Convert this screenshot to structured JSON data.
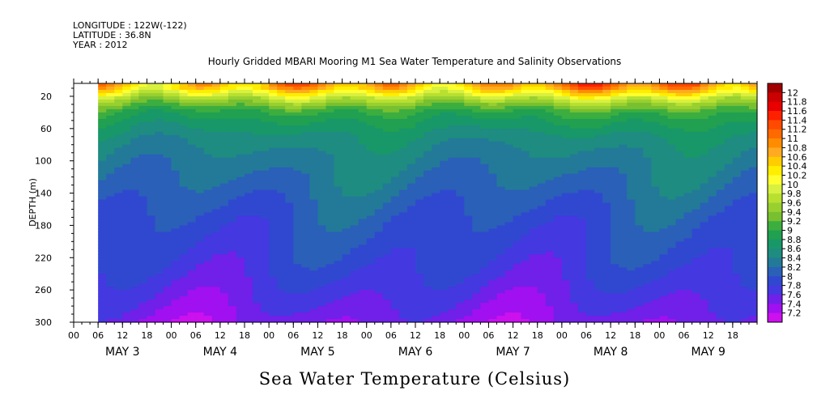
{
  "header": {
    "longitude": "LONGITUDE : 122W(-122)",
    "latitude": "LATITUDE : 36.8N",
    "year": "YEAR : 2012"
  },
  "chart_data": {
    "type": "heatmap",
    "title": "Hourly Gridded MBARI Mooring M1 Sea Water Temperature and Salinity Observations",
    "xlabel": "",
    "ylabel": "DEPTH (m)",
    "variable_label": "Sea Water Temperature (Celsius)",
    "y_ticks": [
      20,
      60,
      100,
      140,
      180,
      220,
      260,
      300
    ],
    "ylim": [
      300,
      4
    ],
    "x_hour_labels": [
      "00",
      "06",
      "12",
      "18",
      "00",
      "06",
      "12",
      "18",
      "00",
      "06",
      "12",
      "18",
      "00",
      "06",
      "12",
      "18",
      "00",
      "06",
      "12",
      "18",
      "00",
      "06",
      "12",
      "18",
      "00",
      "06",
      "12",
      "18"
    ],
    "x_day_labels": [
      "MAY  3",
      "MAY  4",
      "MAY  5",
      "MAY  6",
      "MAY  7",
      "MAY  8",
      "MAY  9"
    ],
    "data_start_hour": 6,
    "total_hours": 168,
    "colorbar_labels": [
      "12",
      "11.8",
      "11.6",
      "11.4",
      "11.2",
      "11",
      "10.8",
      "10.6",
      "10.4",
      "10.2",
      "10",
      "9.8",
      "9.6",
      "9.4",
      "9.2",
      "9",
      "8.8",
      "8.6",
      "8.4",
      "8.2",
      "8",
      "7.8",
      "7.6",
      "7.4",
      "7.2"
    ],
    "colorbar_colors": [
      "#a00000",
      "#cc0000",
      "#e80000",
      "#ff2000",
      "#ff4a00",
      "#ff6a00",
      "#ff8c00",
      "#ffaa20",
      "#ffcc00",
      "#ffee00",
      "#ffff30",
      "#d8f040",
      "#b8e030",
      "#98d030",
      "#78c030",
      "#3cae40",
      "#20a050",
      "#189868",
      "#1e8c80",
      "#227a98",
      "#2a60b8",
      "#3048d0",
      "#4438e0",
      "#7020e8",
      "#a010f0",
      "#cc10ee"
    ],
    "profile": {
      "depths": [
        4,
        10,
        16,
        22,
        30,
        40,
        55,
        70,
        90,
        110,
        140,
        170,
        200,
        230,
        260,
        285,
        300
      ],
      "temperatures": [
        10.9,
        10.6,
        10.2,
        9.8,
        9.4,
        9.0,
        8.75,
        8.55,
        8.4,
        8.3,
        8.15,
        8.0,
        7.9,
        7.8,
        7.65,
        7.5,
        7.4
      ]
    }
  }
}
